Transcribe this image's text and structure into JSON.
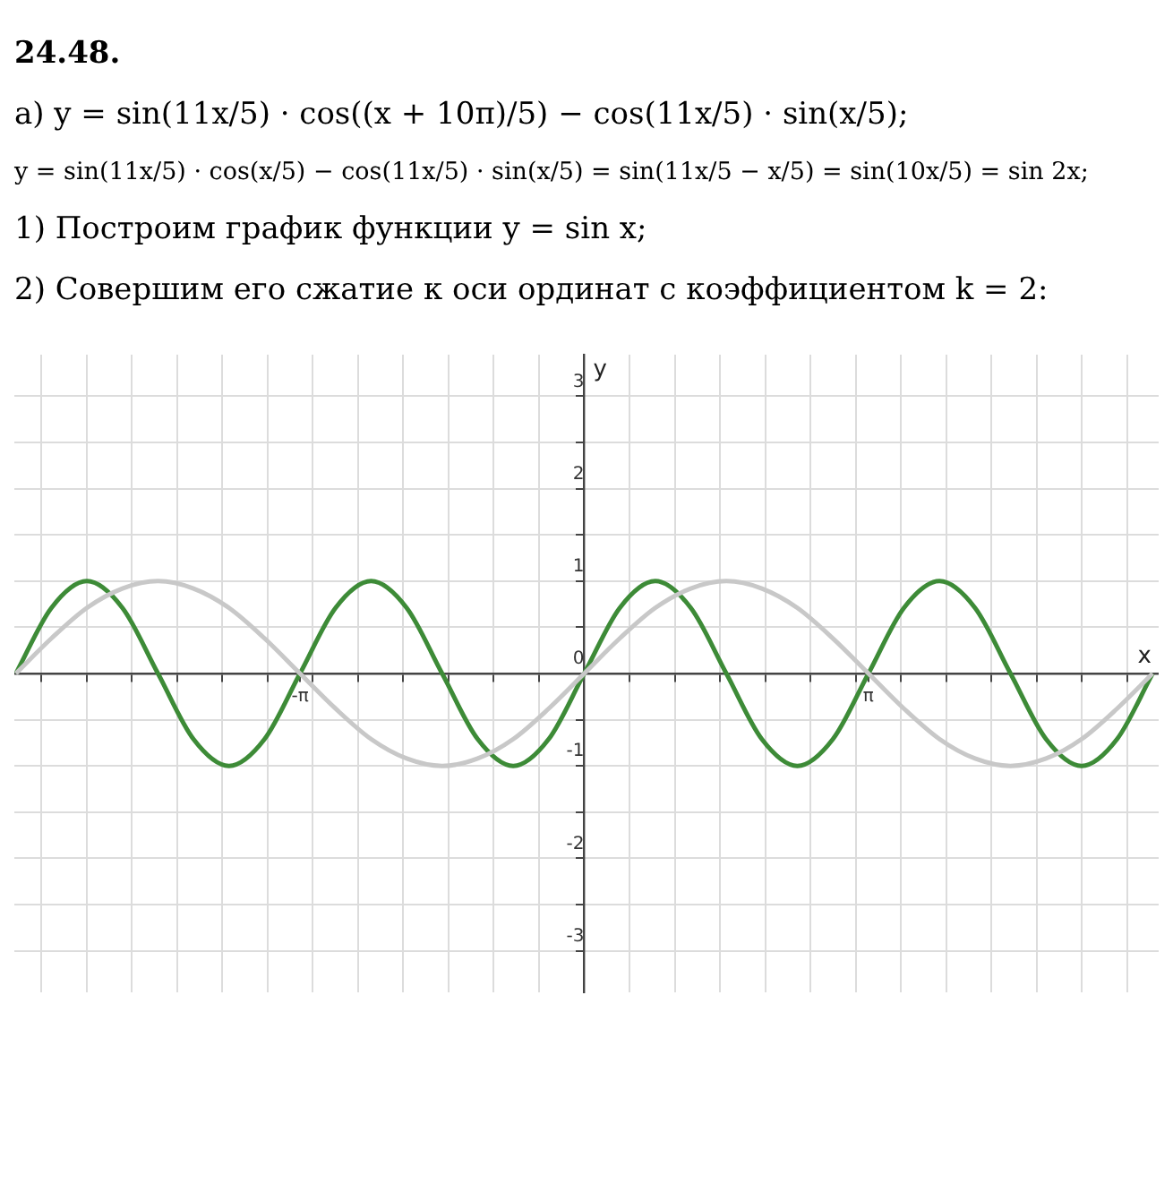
{
  "chart_data": {
    "type": "line",
    "title": "24.48.",
    "annotations": [
      "а) y = sin(11x/5) · cos((x + 10π)/5) − cos(11x/5) · sin(x/5);",
      "y = sin(11x/5) · cos(x/5) − cos(11x/5) · sin(x/5) = sin(11x/5 − x/5) = sin(10x/5) = sin 2x;",
      "1) Построим график функции y = sin x;",
      "2) Совершим его сжатие к оси ординат с коэффициентом k = 2:"
    ],
    "xlabel": "x",
    "ylabel": "y",
    "x": [
      -6.283,
      -5.89,
      -5.498,
      -5.105,
      -4.712,
      -4.32,
      -3.927,
      -3.534,
      -3.142,
      -2.749,
      -2.356,
      -1.963,
      -1.571,
      -1.178,
      -0.785,
      -0.393,
      0,
      0.393,
      0.785,
      1.178,
      1.571,
      1.963,
      2.356,
      2.749,
      3.142,
      3.534,
      3.927,
      4.32,
      4.712,
      5.105,
      5.498,
      5.89,
      6.283
    ],
    "series": [
      {
        "color": "#c8c8c8",
        "values": [
          0,
          0.38,
          0.71,
          0.92,
          1,
          0.92,
          0.71,
          0.38,
          0,
          -0.38,
          -0.71,
          -0.92,
          -1,
          -0.92,
          -0.71,
          -0.38,
          0,
          0.38,
          0.71,
          0.92,
          1,
          0.92,
          0.71,
          0.38,
          0,
          -0.38,
          -0.71,
          -0.92,
          -1,
          -0.92,
          -0.71,
          -0.38,
          0
        ]
      },
      {
        "color": "#3d8b37",
        "values": [
          0,
          0.71,
          1,
          0.71,
          0,
          -0.71,
          -1,
          -0.71,
          0,
          0.71,
          1,
          0.71,
          0,
          -0.71,
          -1,
          -0.71,
          0,
          0.71,
          1,
          0.71,
          0,
          -0.71,
          -1,
          -0.71,
          0,
          0.71,
          1,
          0.71,
          0,
          -0.71,
          -1,
          -0.71,
          0
        ]
      }
    ],
    "xlim": [
      -6.3,
      6.35
    ],
    "ylim": [
      -3.45,
      3.45
    ],
    "xticks": [
      {
        "value": -6,
        "label": null
      },
      {
        "value": -5.5,
        "label": null
      },
      {
        "value": -5,
        "label": null
      },
      {
        "value": -4.5,
        "label": null
      },
      {
        "value": -4,
        "label": null
      },
      {
        "value": -3.5,
        "label": null
      },
      {
        "value": -3.1416,
        "label": "-π"
      },
      {
        "value": -3,
        "label": null
      },
      {
        "value": -2.5,
        "label": null
      },
      {
        "value": -2,
        "label": null
      },
      {
        "value": -1.5,
        "label": null
      },
      {
        "value": -1,
        "label": null
      },
      {
        "value": -0.5,
        "label": null
      },
      {
        "value": 0.5,
        "label": null
      },
      {
        "value": 1,
        "label": null
      },
      {
        "value": 1.5,
        "label": null
      },
      {
        "value": 2,
        "label": null
      },
      {
        "value": 2.5,
        "label": null
      },
      {
        "value": 3,
        "label": null
      },
      {
        "value": 3.1416,
        "label": "π"
      },
      {
        "value": 3.5,
        "label": null
      },
      {
        "value": 4,
        "label": null
      },
      {
        "value": 4.5,
        "label": null
      },
      {
        "value": 5,
        "label": null
      },
      {
        "value": 5.5,
        "label": null
      },
      {
        "value": 6,
        "label": null
      }
    ],
    "yticks": [
      -3,
      {
        "value": -2.5,
        "label": null
      },
      -2,
      {
        "value": -1.5,
        "label": null
      },
      -1,
      {
        "value": -0.5,
        "label": null
      },
      0,
      {
        "value": 0.5,
        "label": null
      },
      1,
      {
        "value": 1.5,
        "label": null
      },
      2,
      {
        "value": 2.5,
        "label": null
      },
      3
    ],
    "grid": true,
    "legend": false,
    "marker": "none",
    "line_style": "solid"
  }
}
